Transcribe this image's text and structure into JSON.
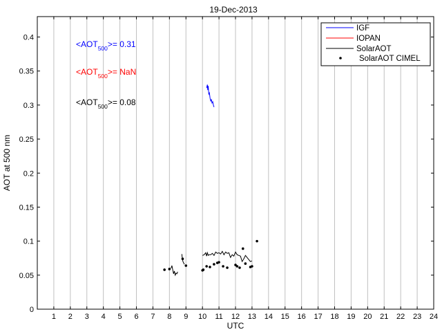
{
  "chart_data": {
    "type": "line",
    "title": "19-Dec-2013",
    "xlabel": "UTC",
    "ylabel": "AOT at 500 nm",
    "xlim": [
      0,
      24
    ],
    "ylim": [
      0,
      0.43
    ],
    "xticks": [
      1,
      2,
      3,
      4,
      5,
      6,
      7,
      8,
      9,
      10,
      11,
      12,
      13,
      14,
      15,
      16,
      17,
      18,
      19,
      20,
      21,
      22,
      23,
      24
    ],
    "xtick_labels": [
      "1",
      "2",
      "3",
      "4",
      "5",
      "6",
      "7",
      "8",
      "9",
      "10",
      "11",
      "12",
      "13",
      "14",
      "15",
      "16",
      "17",
      "18",
      "19",
      "20",
      "21",
      "22",
      "23",
      "24"
    ],
    "yticks": [
      0,
      0.05,
      0.1,
      0.15,
      0.2,
      0.25,
      0.3,
      0.35,
      0.4
    ],
    "ytick_labels": [
      "0",
      "0.05",
      "0.1",
      "0.15",
      "0.2",
      "0.25",
      "0.3",
      "0.35",
      "0.4"
    ],
    "grid": "x",
    "legend_position": "top-right",
    "series": [
      {
        "name": "IGF",
        "color": "#0000ff",
        "style": "line",
        "x": [
          10.25,
          10.3,
          10.32,
          10.35,
          10.38,
          10.42,
          10.46,
          10.5,
          10.54,
          10.58,
          10.62,
          10.66,
          10.7
        ],
        "y": [
          0.325,
          0.33,
          0.322,
          0.328,
          0.316,
          0.318,
          0.31,
          0.306,
          0.308,
          0.303,
          0.305,
          0.3,
          0.297
        ]
      },
      {
        "name": "IOPAN",
        "color": "#ff0000",
        "style": "line",
        "x": [],
        "y": []
      },
      {
        "name": "SolarAOT",
        "color": "#000000",
        "style": "line",
        "segments": [
          {
            "x": [
              8.1,
              8.15,
              8.2,
              8.25,
              8.3,
              8.35,
              8.4,
              8.45,
              8.5
            ],
            "y": [
              0.06,
              0.064,
              0.058,
              0.052,
              0.056,
              0.05,
              0.053,
              0.052,
              0.055
            ]
          },
          {
            "x": [
              8.75,
              8.78,
              8.82,
              8.86,
              8.9
            ],
            "y": [
              0.081,
              0.074,
              0.07,
              0.068,
              0.066
            ]
          },
          {
            "x": [
              10.0,
              10.1,
              10.2,
              10.25,
              10.3,
              10.35,
              10.4,
              10.45,
              10.5,
              10.6,
              10.7,
              10.8,
              10.9,
              11.0,
              11.1,
              11.2,
              11.3,
              11.4,
              11.5,
              11.6,
              11.7,
              11.8,
              11.9,
              12.0,
              12.1,
              12.2,
              12.3,
              12.4,
              12.5,
              12.6,
              12.7,
              12.8,
              12.9,
              13.0
            ],
            "y": [
              0.079,
              0.08,
              0.083,
              0.078,
              0.083,
              0.079,
              0.08,
              0.08,
              0.08,
              0.082,
              0.079,
              0.084,
              0.082,
              0.083,
              0.081,
              0.085,
              0.08,
              0.084,
              0.082,
              0.083,
              0.076,
              0.08,
              0.078,
              0.084,
              0.08,
              0.079,
              0.078,
              0.07,
              0.074,
              0.079,
              0.076,
              0.073,
              0.07,
              0.071
            ]
          }
        ]
      },
      {
        "name": "SolarAOT CIMEL",
        "color": "#000000",
        "style": "markers",
        "x": [
          7.7,
          8.0,
          8.8,
          9.0,
          10.0,
          10.05,
          10.25,
          10.45,
          10.7,
          10.9,
          11.0,
          11.25,
          11.5,
          12.0,
          12.1,
          12.25,
          12.45,
          12.6,
          12.9,
          13.0,
          13.3
        ],
        "y": [
          0.058,
          0.059,
          0.074,
          0.064,
          0.057,
          0.058,
          0.063,
          0.062,
          0.066,
          0.068,
          0.069,
          0.063,
          0.061,
          0.065,
          0.063,
          0.061,
          0.089,
          0.067,
          0.062,
          0.063,
          0.1
        ]
      }
    ],
    "annotations": [
      {
        "prefix": "<AOT",
        "sub": "500",
        "suffix": ">= 0.31",
        "color": "#0000ff"
      },
      {
        "prefix": "<AOT",
        "sub": "500",
        "suffix": ">=  NaN",
        "color": "#ff0000"
      },
      {
        "prefix": "<AOT",
        "sub": "500",
        "suffix": ">= 0.08",
        "color": "#000000"
      }
    ]
  }
}
